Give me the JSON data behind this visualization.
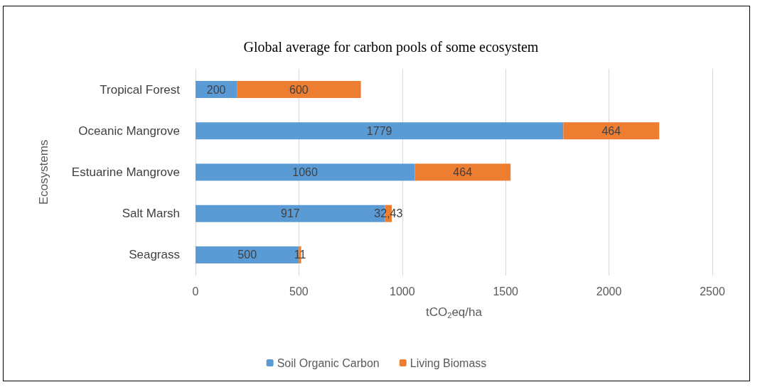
{
  "chart_data": {
    "type": "bar",
    "orientation": "horizontal",
    "stacked": true,
    "title": "Global average for carbon pools of some ecosystem",
    "xlabel": "tCO$_{2}$eq/ha",
    "ylabel": "Ecosystems",
    "categories": [
      "Tropical Forest",
      "Oceanic Mangrove",
      "Estuarine Mangrove",
      "Salt Marsh",
      "Seagrass"
    ],
    "series": [
      {
        "name": "Soil Organic Carbon",
        "color": "#5b9bd5",
        "values": [
          200,
          1779,
          1060,
          917,
          500
        ],
        "value_labels": [
          "200",
          "1779",
          "1060",
          "917",
          "500"
        ]
      },
      {
        "name": "Living Biomass",
        "color": "#ed7d31",
        "values": [
          600,
          464,
          464,
          32.43,
          11
        ],
        "value_labels": [
          "600",
          "464",
          "464",
          "32,43",
          "11"
        ]
      }
    ],
    "xlim": [
      0,
      2500
    ],
    "xticks": [
      0,
      500,
      1000,
      1500,
      2000,
      2500
    ],
    "grid": "x",
    "legend": "bottom"
  }
}
